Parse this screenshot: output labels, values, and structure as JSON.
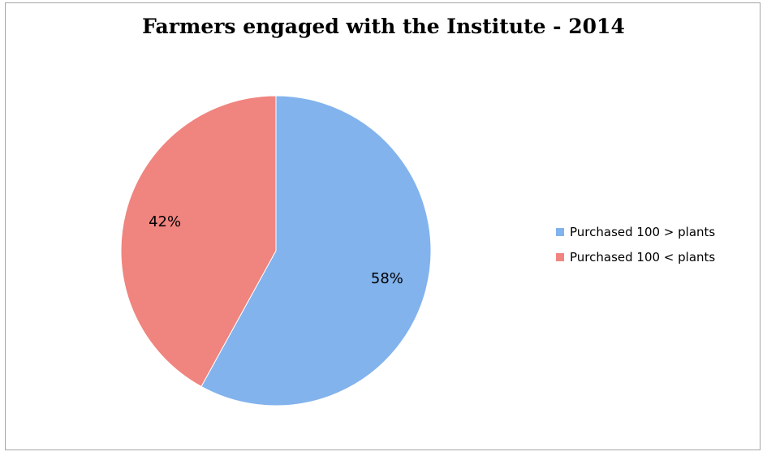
{
  "chart_data": {
    "type": "pie",
    "title": "Farmers engaged with the Institute - 2014",
    "categories": [
      "Purchased 100 > plants",
      "Purchased 100 < plants"
    ],
    "values": [
      58,
      42
    ],
    "data_labels": [
      "58%",
      "42%"
    ],
    "colors": [
      "#82b3ed",
      "#f0847f"
    ],
    "legend_position": "right"
  }
}
